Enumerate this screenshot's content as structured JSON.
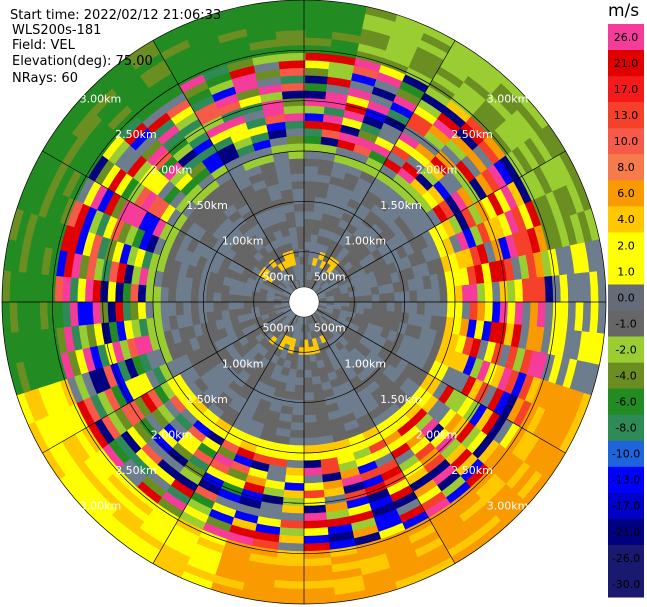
{
  "info": {
    "start_time": "Start time: 2022/02/12 21:06:33",
    "instrument": "WLS200s-181",
    "field": "Field: VEL",
    "elevation": "Elevation(deg): 75.00",
    "nrays": "NRays: 60"
  },
  "chart_data": {
    "type": "heatmap",
    "projection": "polar PPI",
    "field": "VEL",
    "elevation_deg": 75.0,
    "n_rays": 60,
    "max_range_km": 3.0,
    "range_rings": [
      "500m",
      "1.00km",
      "1.50km",
      "2.00km",
      "2.50km",
      "3.00km"
    ],
    "range_ring_km": [
      0.5,
      1.0,
      1.5,
      2.0,
      2.5,
      3.0
    ],
    "colorbar": {
      "unit": "m/s",
      "ticks": [
        "26.0",
        "21.0",
        "17.0",
        "13.0",
        "10.0",
        "8.0",
        "6.0",
        "4.0",
        "2.0",
        "1.0",
        "0.0",
        "-1.0",
        "-2.0",
        "-4.0",
        "-6.0",
        "-8.0",
        "-10.0",
        "-13.0",
        "-17.0",
        "-21.0",
        "-26.0",
        "-30.0"
      ],
      "colors": [
        "#f53c9a",
        "#e00000",
        "#f41a1a",
        "#f5402a",
        "#f65a48",
        "#f57a4c",
        "#f99a00",
        "#ffc800",
        "#ffff00",
        "#ffff00",
        "#666b78",
        "#666666",
        "#9acd32",
        "#6b8e23",
        "#228b22",
        "#2e8b57",
        "#1e64dc",
        "#0000ff",
        "#0000c8",
        "#000080",
        "#191970",
        "#191970"
      ]
    },
    "shading": [
      {
        "from_km": 0.15,
        "to_km": 1.45,
        "pattern": "gray",
        "note": "near-zero velocities"
      },
      {
        "from_km": 1.45,
        "to_km": 1.6,
        "pattern": "light-green ring (north/west), yellow (east/south)"
      },
      {
        "from_km": 1.6,
        "to_km": 2.45,
        "pattern": "mixed aliasing band"
      },
      {
        "from_km": 2.45,
        "to_km": 3.0,
        "pattern": "dark green (NW), light green (NE), yellow/orange (E-SE-S)"
      }
    ]
  }
}
